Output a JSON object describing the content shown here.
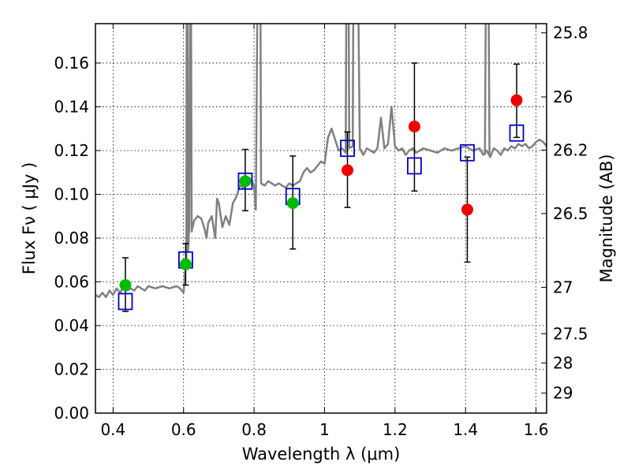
{
  "chart_data": {
    "type": "scatter",
    "xlabel": "Wavelength  λ (μm)",
    "ylabel": "Flux  Fν  ( μJy )",
    "y2label": "Magnitude (AB)",
    "xlim": [
      0.35,
      1.63
    ],
    "ylim": [
      0.0,
      0.178
    ],
    "grid": true,
    "x_ticks": [
      0.4,
      0.6,
      0.8,
      1.0,
      1.2,
      1.4,
      1.6
    ],
    "x_tick_labels": [
      "0.4",
      "0.6",
      "0.8",
      "1",
      "1.2",
      "1.4",
      "1.6"
    ],
    "y_ticks": [
      0.0,
      0.02,
      0.04,
      0.06,
      0.08,
      0.1,
      0.12,
      0.14,
      0.16
    ],
    "y_tick_labels": [
      "0.00",
      "0.02",
      "0.04",
      "0.06",
      "0.08",
      "0.10",
      "0.12",
      "0.14",
      "0.16"
    ],
    "y2_ticks": [
      {
        "label": "25.8",
        "flux": 0.1738
      },
      {
        "label": "26",
        "flux": 0.1445
      },
      {
        "label": "26.2",
        "flux": 0.1202
      },
      {
        "label": "26.5",
        "flux": 0.0912
      },
      {
        "label": "27",
        "flux": 0.0575
      },
      {
        "label": "27.5",
        "flux": 0.0363
      },
      {
        "label": "28",
        "flux": 0.0229
      },
      {
        "label": "29",
        "flux": 0.0091
      }
    ],
    "series": [
      {
        "kind": "spectrum",
        "color": "#808080",
        "points": [
          [
            0.35,
            0.054
          ],
          [
            0.36,
            0.053
          ],
          [
            0.37,
            0.055
          ],
          [
            0.38,
            0.053
          ],
          [
            0.39,
            0.056
          ],
          [
            0.4,
            0.054
          ],
          [
            0.41,
            0.057
          ],
          [
            0.42,
            0.055
          ],
          [
            0.43,
            0.058
          ],
          [
            0.44,
            0.056
          ],
          [
            0.45,
            0.057
          ],
          [
            0.46,
            0.056
          ],
          [
            0.47,
            0.058
          ],
          [
            0.48,
            0.057
          ],
          [
            0.49,
            0.056
          ],
          [
            0.5,
            0.058
          ],
          [
            0.52,
            0.057
          ],
          [
            0.54,
            0.058
          ],
          [
            0.56,
            0.057
          ],
          [
            0.58,
            0.058
          ],
          [
            0.59,
            0.057
          ],
          [
            0.595,
            0.056
          ],
          [
            0.6,
            0.055
          ],
          [
            0.605,
            0.066
          ],
          [
            0.608,
            0.07
          ],
          [
            0.609,
            0.2
          ],
          [
            0.611,
            0.2
          ],
          [
            0.613,
            0.074
          ],
          [
            0.616,
            0.085
          ],
          [
            0.619,
            0.2
          ],
          [
            0.621,
            0.2
          ],
          [
            0.623,
            0.083
          ],
          [
            0.63,
            0.088
          ],
          [
            0.64,
            0.09
          ],
          [
            0.65,
            0.089
          ],
          [
            0.66,
            0.084
          ],
          [
            0.665,
            0.08
          ],
          [
            0.67,
            0.087
          ],
          [
            0.68,
            0.09
          ],
          [
            0.685,
            0.085
          ],
          [
            0.69,
            0.08
          ],
          [
            0.695,
            0.098
          ],
          [
            0.7,
            0.096
          ],
          [
            0.71,
            0.085
          ],
          [
            0.72,
            0.09
          ],
          [
            0.73,
            0.086
          ],
          [
            0.74,
            0.096
          ],
          [
            0.75,
            0.099
          ],
          [
            0.76,
            0.104
          ],
          [
            0.77,
            0.103
          ],
          [
            0.78,
            0.104
          ],
          [
            0.79,
            0.107
          ],
          [
            0.8,
            0.104
          ],
          [
            0.805,
            0.093
          ],
          [
            0.81,
            0.2
          ],
          [
            0.818,
            0.2
          ],
          [
            0.82,
            0.105
          ],
          [
            0.83,
            0.104
          ],
          [
            0.84,
            0.106
          ],
          [
            0.85,
            0.105
          ],
          [
            0.86,
            0.104
          ],
          [
            0.87,
            0.105
          ],
          [
            0.88,
            0.104
          ],
          [
            0.89,
            0.103
          ],
          [
            0.9,
            0.105
          ],
          [
            0.91,
            0.104
          ],
          [
            0.92,
            0.105
          ],
          [
            0.93,
            0.106
          ],
          [
            0.94,
            0.11
          ],
          [
            0.95,
            0.112
          ],
          [
            0.96,
            0.11
          ],
          [
            0.97,
            0.111
          ],
          [
            0.98,
            0.113
          ],
          [
            0.99,
            0.115
          ],
          [
            1.0,
            0.114
          ],
          [
            1.01,
            0.126
          ],
          [
            1.02,
            0.13
          ],
          [
            1.03,
            0.125
          ],
          [
            1.04,
            0.12
          ],
          [
            1.05,
            0.121
          ],
          [
            1.06,
            0.119
          ],
          [
            1.062,
            0.2
          ],
          [
            1.068,
            0.2
          ],
          [
            1.07,
            0.121
          ],
          [
            1.08,
            0.122
          ],
          [
            1.082,
            0.2
          ],
          [
            1.095,
            0.2
          ],
          [
            1.1,
            0.121
          ],
          [
            1.11,
            0.118
          ],
          [
            1.12,
            0.121
          ],
          [
            1.13,
            0.12
          ],
          [
            1.14,
            0.119
          ],
          [
            1.15,
            0.121
          ],
          [
            1.16,
            0.135
          ],
          [
            1.17,
            0.121
          ],
          [
            1.18,
            0.123
          ],
          [
            1.19,
            0.14
          ],
          [
            1.2,
            0.122
          ],
          [
            1.21,
            0.12
          ],
          [
            1.22,
            0.121
          ],
          [
            1.23,
            0.118
          ],
          [
            1.24,
            0.12
          ],
          [
            1.25,
            0.121
          ],
          [
            1.26,
            0.119
          ],
          [
            1.27,
            0.12
          ],
          [
            1.28,
            0.121
          ],
          [
            1.3,
            0.12
          ],
          [
            1.32,
            0.119
          ],
          [
            1.34,
            0.121
          ],
          [
            1.36,
            0.12
          ],
          [
            1.38,
            0.121
          ],
          [
            1.4,
            0.122
          ],
          [
            1.42,
            0.12
          ],
          [
            1.44,
            0.121
          ],
          [
            1.45,
            0.118
          ],
          [
            1.46,
            0.12
          ],
          [
            1.47,
            0.117
          ],
          [
            1.48,
            0.121
          ],
          [
            1.49,
            0.12
          ],
          [
            1.5,
            0.118
          ],
          [
            1.51,
            0.121
          ],
          [
            1.52,
            0.12
          ],
          [
            1.53,
            0.122
          ],
          [
            1.54,
            0.121
          ],
          [
            1.545,
            0.122
          ],
          [
            1.55,
            0.123
          ],
          [
            1.56,
            0.122
          ],
          [
            1.57,
            0.123
          ],
          [
            1.58,
            0.121
          ],
          [
            1.59,
            0.122
          ],
          [
            1.6,
            0.124
          ],
          [
            1.61,
            0.125
          ],
          [
            1.62,
            0.124
          ],
          [
            1.63,
            0.122
          ]
        ],
        "spike": [
          [
            1.455,
            0.118
          ],
          [
            1.458,
            0.2
          ],
          [
            1.465,
            0.2
          ],
          [
            1.468,
            0.118
          ]
        ]
      },
      {
        "kind": "model_photometry",
        "marker": "open-square",
        "color": "#0000cc",
        "points": [
          {
            "x": 0.435,
            "y": 0.051
          },
          {
            "x": 0.606,
            "y": 0.07
          },
          {
            "x": 0.775,
            "y": 0.106
          },
          {
            "x": 0.91,
            "y": 0.099
          },
          {
            "x": 1.065,
            "y": 0.121
          },
          {
            "x": 1.255,
            "y": 0.113
          },
          {
            "x": 1.405,
            "y": 0.119
          },
          {
            "x": 1.545,
            "y": 0.128
          }
        ]
      },
      {
        "kind": "observed_photometry",
        "marker": "filled-circle",
        "points": [
          {
            "x": 0.435,
            "y": 0.0585,
            "err_low": 0.0465,
            "err_high": 0.071,
            "color": "#00bb00"
          },
          {
            "x": 0.606,
            "y": 0.068,
            "err_low": 0.0585,
            "err_high": 0.0775,
            "color": "#00bb00"
          },
          {
            "x": 0.775,
            "y": 0.106,
            "err_low": 0.0925,
            "err_high": 0.1205,
            "color": "#00bb00"
          },
          {
            "x": 0.91,
            "y": 0.096,
            "err_low": 0.075,
            "err_high": 0.1175,
            "color": "#00bb00"
          },
          {
            "x": 1.065,
            "y": 0.111,
            "err_low": 0.094,
            "err_high": 0.1285,
            "color": "#ee0000"
          },
          {
            "x": 1.255,
            "y": 0.131,
            "err_low": 0.1015,
            "err_high": 0.16,
            "color": "#ee0000"
          },
          {
            "x": 1.405,
            "y": 0.093,
            "err_low": 0.069,
            "err_high": 0.117,
            "color": "#ee0000"
          },
          {
            "x": 1.545,
            "y": 0.143,
            "err_low": 0.126,
            "err_high": 0.1595,
            "color": "#ee0000"
          }
        ]
      }
    ]
  }
}
